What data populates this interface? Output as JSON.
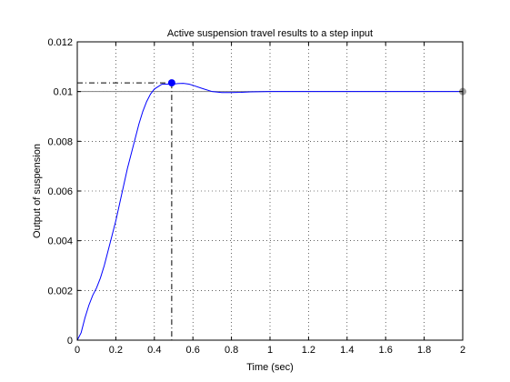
{
  "chart_data": {
    "type": "line",
    "title": "Active suspension travel results to a step input",
    "xlabel": "Time (sec)",
    "ylabel": "Output of suspension",
    "xlim": [
      0,
      2
    ],
    "ylim": [
      0,
      0.012
    ],
    "grid": true,
    "x_ticks": [
      "0",
      "0.2",
      "0.4",
      "0.6",
      "0.8",
      "1",
      "1.2",
      "1.4",
      "1.6",
      "1.8",
      "2"
    ],
    "y_ticks": [
      "0",
      "0.002",
      "0.004",
      "0.006",
      "0.008",
      "0.01",
      "0.012"
    ],
    "colors": {
      "series": "#0000ff",
      "steady_state_line": "#808080",
      "peak_marker": "#0000ff",
      "end_marker": "#a0a0a0",
      "guide_lines": "#000000"
    },
    "series": [
      {
        "x": [
          0,
          0.02,
          0.04,
          0.06,
          0.08,
          0.1,
          0.12,
          0.14,
          0.16,
          0.18,
          0.2,
          0.22,
          0.24,
          0.26,
          0.28,
          0.3,
          0.32,
          0.34,
          0.36,
          0.38,
          0.4,
          0.42,
          0.44,
          0.46,
          0.48,
          0.5,
          0.52,
          0.55,
          0.58,
          0.6,
          0.65,
          0.7,
          0.75,
          0.8,
          0.85,
          0.9,
          1.0,
          1.2,
          1.4,
          1.6,
          1.8,
          2.0
        ],
        "y": [
          0,
          0.0003,
          0.0009,
          0.0014,
          0.0018,
          0.0021,
          0.0025,
          0.003,
          0.0036,
          0.0042,
          0.0048,
          0.0055,
          0.0062,
          0.0069,
          0.0075,
          0.0081,
          0.0087,
          0.0092,
          0.0096,
          0.0099,
          0.0101,
          0.0102,
          0.0103,
          0.0103,
          0.0103,
          0.0103,
          0.01032,
          0.01033,
          0.0103,
          0.01025,
          0.01012,
          0.01,
          0.00996,
          0.00996,
          0.00997,
          0.00999,
          0.01,
          0.01,
          0.01,
          0.01,
          0.01,
          0.01
        ]
      }
    ],
    "steady_state": 0.01,
    "peak": {
      "x": 0.49,
      "y": 0.01035
    },
    "end_point": {
      "x": 2,
      "y": 0.01
    }
  }
}
